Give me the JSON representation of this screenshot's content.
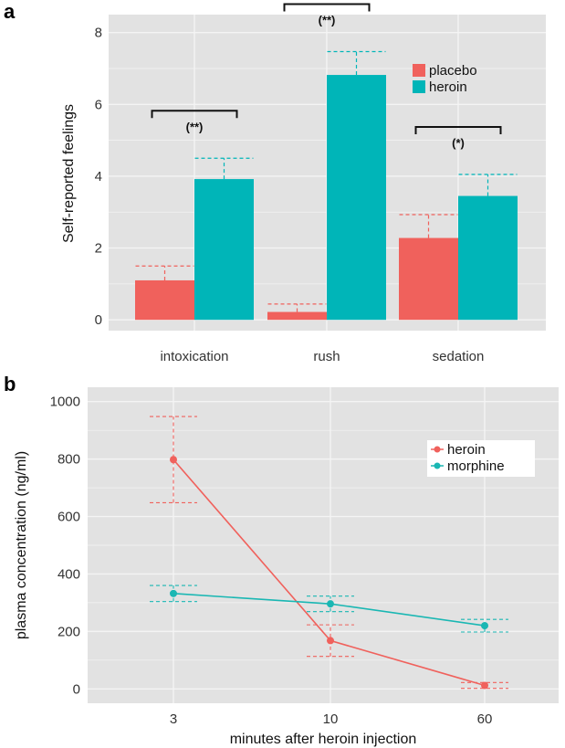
{
  "colors": {
    "placebo": "#f0615c",
    "heroin": "#00b5b8",
    "morphine": "#1ab7b3",
    "panel_bg": "#e2e2e2",
    "grid": "#f4f4f4"
  },
  "chart_data": [
    {
      "panel": "a",
      "type": "bar",
      "categories": [
        "intoxication",
        "rush",
        "sedation"
      ],
      "series": [
        {
          "name": "placebo",
          "values": [
            1.1,
            0.22,
            2.28
          ],
          "error": [
            0.4,
            0.22,
            0.65
          ]
        },
        {
          "name": "heroin",
          "values": [
            3.92,
            6.82,
            3.45
          ],
          "error": [
            0.58,
            0.65,
            0.6
          ]
        }
      ],
      "ylabel": "Self-reported feelings",
      "xlabel": "",
      "ylim": [
        -0.3,
        8.5
      ],
      "yticks": [
        0,
        2,
        4,
        6,
        8
      ],
      "significance": [
        "(**)",
        "(**)",
        "(*)"
      ],
      "legend": "top-right",
      "grid": true
    },
    {
      "panel": "b",
      "type": "line",
      "x": [
        "3",
        "10",
        "60"
      ],
      "series": [
        {
          "name": "heroin",
          "values": [
            798,
            168,
            12
          ],
          "error": [
            150,
            55,
            10
          ]
        },
        {
          "name": "morphine",
          "values": [
            332,
            296,
            220
          ],
          "error": [
            28,
            27,
            22
          ]
        }
      ],
      "ylabel": "plasma concentration (ng/ml)",
      "xlabel": "minutes after heroin injection",
      "ylim": [
        -50,
        1050
      ],
      "yticks": [
        0,
        200,
        400,
        600,
        800,
        1000
      ],
      "legend": "top-right",
      "grid": true
    }
  ]
}
